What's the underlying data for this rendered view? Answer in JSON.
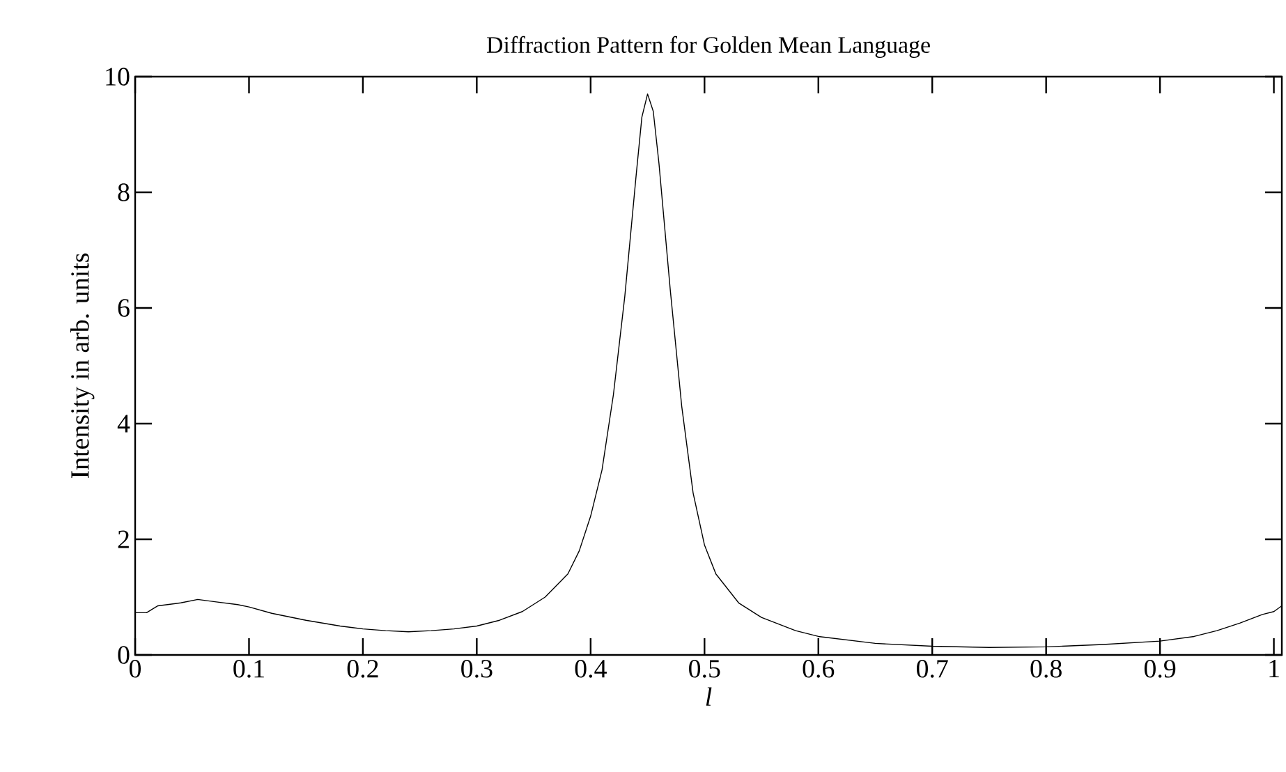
{
  "chart_data": {
    "type": "line",
    "title": "Diffraction Pattern for Golden Mean Language",
    "xlabel": "*l*",
    "ylabel": "Intensity in arb. units",
    "xlim": [
      0,
      1.007
    ],
    "ylim": [
      0,
      10
    ],
    "xticks": [
      0,
      0.1,
      0.2,
      0.3,
      0.4,
      0.5,
      0.6,
      0.7,
      0.8,
      0.9,
      1
    ],
    "yticks": [
      0,
      2,
      4,
      6,
      8,
      10
    ],
    "line_style": "solid",
    "series": [
      {
        "color": "#000000",
        "x": [
          0,
          0.01,
          0.02,
          0.04,
          0.055,
          0.07,
          0.09,
          0.1,
          0.12,
          0.15,
          0.18,
          0.2,
          0.22,
          0.24,
          0.26,
          0.28,
          0.3,
          0.32,
          0.34,
          0.36,
          0.38,
          0.39,
          0.4,
          0.41,
          0.42,
          0.43,
          0.44,
          0.445,
          0.45,
          0.455,
          0.46,
          0.47,
          0.48,
          0.49,
          0.5,
          0.51,
          0.53,
          0.55,
          0.58,
          0.6,
          0.65,
          0.7,
          0.75,
          0.8,
          0.85,
          0.9,
          0.93,
          0.95,
          0.97,
          0.99,
          1.0,
          1.007
        ],
        "values": [
          0.73,
          0.73,
          0.85,
          0.9,
          0.96,
          0.92,
          0.87,
          0.83,
          0.72,
          0.6,
          0.5,
          0.45,
          0.42,
          0.4,
          0.42,
          0.45,
          0.5,
          0.6,
          0.75,
          1.0,
          1.4,
          1.8,
          2.4,
          3.2,
          4.5,
          6.2,
          8.3,
          9.3,
          9.7,
          9.4,
          8.5,
          6.3,
          4.3,
          2.8,
          1.9,
          1.4,
          0.9,
          0.65,
          0.42,
          0.32,
          0.2,
          0.15,
          0.13,
          0.14,
          0.18,
          0.24,
          0.32,
          0.42,
          0.55,
          0.7,
          0.75,
          0.85
        ]
      }
    ]
  }
}
